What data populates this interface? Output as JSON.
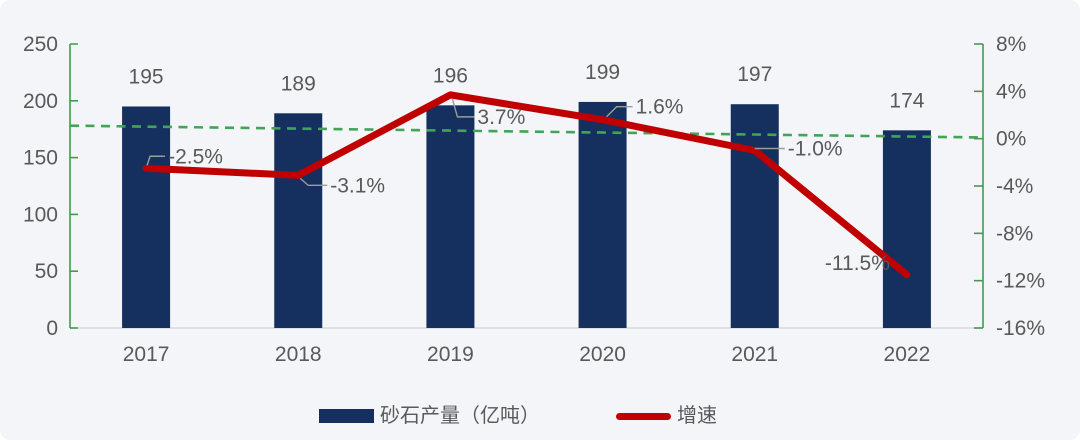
{
  "colors": {
    "background": "#f3f5f8",
    "bar": "#152f5e",
    "line_red": "#c00000",
    "axis_green": "#449a4f",
    "dash_green": "#43a458",
    "text_gray": "#595959",
    "baseline_gray": "#d9d9d9",
    "leader_gray": "#9c9c9c"
  },
  "chart_data": {
    "type": "bar+line",
    "title": "",
    "categories": [
      "2017",
      "2018",
      "2019",
      "2020",
      "2021",
      "2022"
    ],
    "series": [
      {
        "name": "砂石产量（亿吨）",
        "type": "bar",
        "axis": "left",
        "values": [
          195,
          189,
          196,
          199,
          197,
          174
        ],
        "value_labels": [
          "195",
          "189",
          "196",
          "199",
          "197",
          "174"
        ]
      },
      {
        "name": "增速",
        "type": "line",
        "axis": "right",
        "values": [
          -2.5,
          -3.1,
          3.7,
          1.6,
          -1.0,
          -11.5
        ],
        "value_labels": [
          "-2.5%",
          "-3.1%",
          "3.7%",
          "1.6%",
          "-1.0%",
          "-11.5%"
        ]
      }
    ],
    "left_axis": {
      "min": 0,
      "max": 250,
      "tick_step": 50,
      "tick_labels": [
        "250",
        "200",
        "150",
        "100",
        "50",
        "0"
      ]
    },
    "right_axis": {
      "min": -16,
      "max": 8,
      "tick_step": 4,
      "tick_labels": [
        "8%",
        "4%",
        "0%",
        "-4%",
        "-8%",
        "-12%",
        "-16%"
      ]
    },
    "reference_line": {
      "style": "dashed",
      "axis": "right",
      "start_value": 1.1,
      "end_value": 0.1
    },
    "legend": [
      {
        "label": "砂石产量（亿吨）",
        "type": "bar"
      },
      {
        "label": "增速",
        "type": "line"
      }
    ]
  }
}
